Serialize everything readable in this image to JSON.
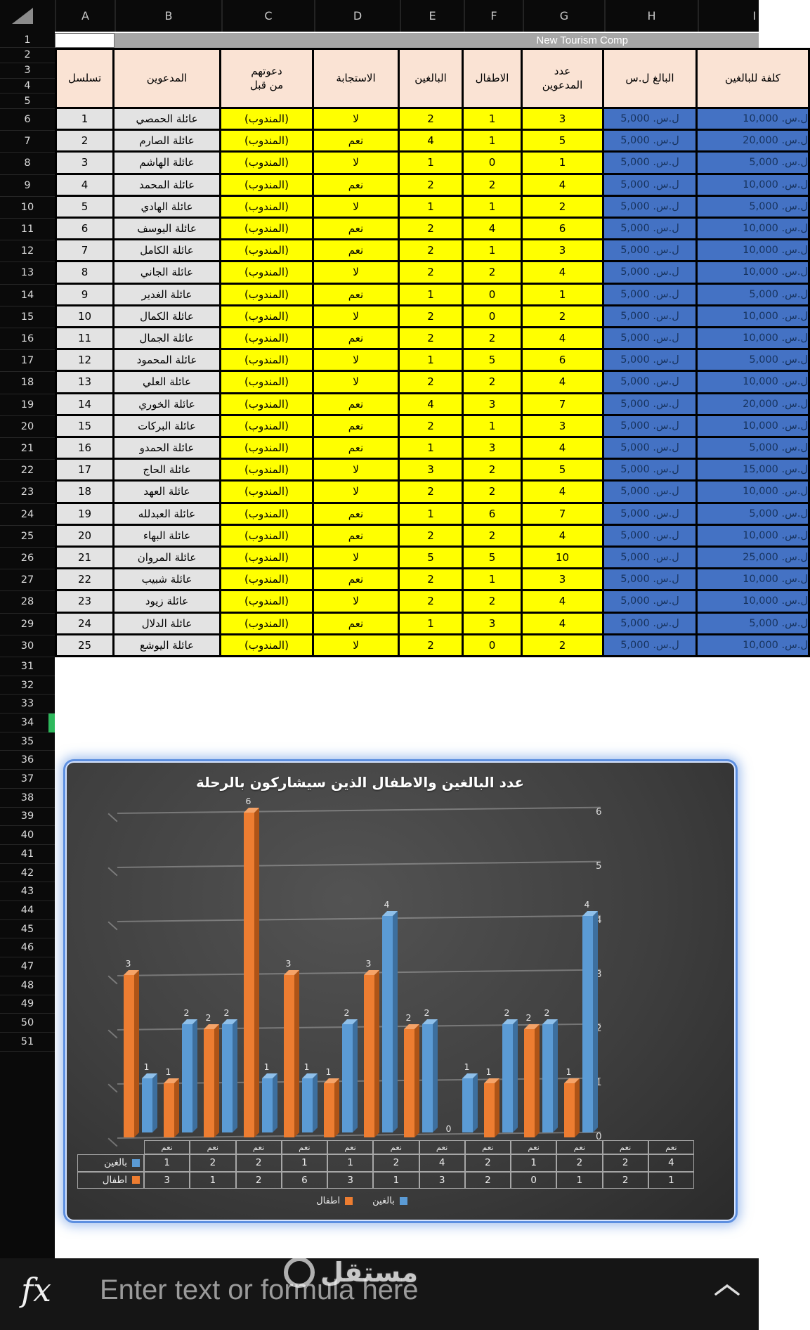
{
  "sheet": {
    "column_letters": [
      "A",
      "B",
      "C",
      "D",
      "E",
      "F",
      "G",
      "H",
      "I"
    ],
    "row_count": 51,
    "selected_row_indicator": 34,
    "title_banner": "New Tourism Comp"
  },
  "table": {
    "column_headers": [
      "تسلسل",
      "المدعوين",
      "دعوتهم\nمن قبل",
      "الاستجابة",
      "البالغين",
      "الاطفال",
      "عدد\nالمدعوين",
      "البالغ ل.س",
      "كلفة للبالغين"
    ],
    "rows": [
      [
        "1",
        "عائلة الحمصي",
        "(المندوب)",
        "لا",
        "2",
        "1",
        "3",
        "ل.س. 5,000",
        "ل.س. 10,000"
      ],
      [
        "2",
        "عائلة الصارم",
        "(المندوب)",
        "نعم",
        "4",
        "1",
        "5",
        "ل.س. 5,000",
        "ل.س. 20,000"
      ],
      [
        "3",
        "عائلة الهاشم",
        "(المندوب)",
        "لا",
        "1",
        "0",
        "1",
        "ل.س. 5,000",
        "ل.س. 5,000"
      ],
      [
        "4",
        "عائلة المحمد",
        "(المندوب)",
        "نعم",
        "2",
        "2",
        "4",
        "ل.س. 5,000",
        "ل.س. 10,000"
      ],
      [
        "5",
        "عائلة الهادي",
        "(المندوب)",
        "لا",
        "1",
        "1",
        "2",
        "ل.س. 5,000",
        "ل.س. 5,000"
      ],
      [
        "6",
        "عائلة اليوسف",
        "(المندوب)",
        "نعم",
        "2",
        "4",
        "6",
        "ل.س. 5,000",
        "ل.س. 10,000"
      ],
      [
        "7",
        "عائلة الكامل",
        "(المندوب)",
        "نعم",
        "2",
        "1",
        "3",
        "ل.س. 5,000",
        "ل.س. 10,000"
      ],
      [
        "8",
        "عائلة الجاني",
        "(المندوب)",
        "لا",
        "2",
        "2",
        "4",
        "ل.س. 5,000",
        "ل.س. 10,000"
      ],
      [
        "9",
        "عائلة الغدير",
        "(المندوب)",
        "نعم",
        "1",
        "0",
        "1",
        "ل.س. 5,000",
        "ل.س. 5,000"
      ],
      [
        "10",
        "عائلة الكمال",
        "(المندوب)",
        "لا",
        "2",
        "0",
        "2",
        "ل.س. 5,000",
        "ل.س. 10,000"
      ],
      [
        "11",
        "عائلة الجمال",
        "(المندوب)",
        "نعم",
        "2",
        "2",
        "4",
        "ل.س. 5,000",
        "ل.س. 10,000"
      ],
      [
        "12",
        "عائلة المحمود",
        "(المندوب)",
        "لا",
        "1",
        "5",
        "6",
        "ل.س. 5,000",
        "ل.س. 5,000"
      ],
      [
        "13",
        "عائلة العلي",
        "(المندوب)",
        "لا",
        "2",
        "2",
        "4",
        "ل.س. 5,000",
        "ل.س. 10,000"
      ],
      [
        "14",
        "عائلة الخوري",
        "(المندوب)",
        "نعم",
        "4",
        "3",
        "7",
        "ل.س. 5,000",
        "ل.س. 20,000"
      ],
      [
        "15",
        "عائلة البركات",
        "(المندوب)",
        "نعم",
        "2",
        "1",
        "3",
        "ل.س. 5,000",
        "ل.س. 10,000"
      ],
      [
        "16",
        "عائلة الحمدو",
        "(المندوب)",
        "نعم",
        "1",
        "3",
        "4",
        "ل.س. 5,000",
        "ل.س. 5,000"
      ],
      [
        "17",
        "عائلة الحاج",
        "(المندوب)",
        "لا",
        "3",
        "2",
        "5",
        "ل.س. 5,000",
        "ل.س. 15,000"
      ],
      [
        "18",
        "عائلة العهد",
        "(المندوب)",
        "لا",
        "2",
        "2",
        "4",
        "ل.س. 5,000",
        "ل.س. 10,000"
      ],
      [
        "19",
        "عائلة العبدلله",
        "(المندوب)",
        "نعم",
        "1",
        "6",
        "7",
        "ل.س. 5,000",
        "ل.س. 5,000"
      ],
      [
        "20",
        "عائلة البهاء",
        "(المندوب)",
        "نعم",
        "2",
        "2",
        "4",
        "ل.س. 5,000",
        "ل.س. 10,000"
      ],
      [
        "21",
        "عائلة المروان",
        "(المندوب)",
        "لا",
        "5",
        "5",
        "10",
        "ل.س. 5,000",
        "ل.س. 25,000"
      ],
      [
        "22",
        "عائلة شبيب",
        "(المندوب)",
        "نعم",
        "2",
        "1",
        "3",
        "ل.س. 5,000",
        "ل.س. 10,000"
      ],
      [
        "23",
        "عائلة زيود",
        "(المندوب)",
        "لا",
        "2",
        "2",
        "4",
        "ل.س. 5,000",
        "ل.س. 10,000"
      ],
      [
        "24",
        "عائلة الدلال",
        "(المندوب)",
        "نعم",
        "1",
        "3",
        "4",
        "ل.س. 5,000",
        "ل.س. 5,000"
      ],
      [
        "25",
        "عائلة اليوشع",
        "(المندوب)",
        "لا",
        "2",
        "0",
        "2",
        "ل.س. 5,000",
        "ل.س. 10,000"
      ]
    ]
  },
  "chart_data": {
    "type": "bar",
    "title": "عدد  البالغين والاطفال الذين سيشاركون بالرحلة",
    "categories": [
      "نعم",
      "نعم",
      "نعم",
      "نعم",
      "نعم",
      "نعم",
      "نعم",
      "نعم",
      "نعم",
      "نعم",
      "نعم",
      "نعم"
    ],
    "series": [
      {
        "name": "بالغين",
        "color": "#5B9BD5",
        "values": [
          1,
          2,
          2,
          1,
          1,
          2,
          4,
          2,
          1,
          2,
          2,
          4
        ]
      },
      {
        "name": "اطفال",
        "color": "#ED7D31",
        "values": [
          3,
          1,
          2,
          6,
          3,
          1,
          3,
          2,
          0,
          1,
          2,
          1
        ]
      }
    ],
    "ylim": [
      0,
      6
    ],
    "yticks": [
      0,
      1,
      2,
      3,
      4,
      5,
      6
    ],
    "axis_side": "right",
    "grid": true,
    "data_table": true,
    "legend_position": "bottom"
  },
  "formula_bar": {
    "fx": "fx",
    "placeholder": "Enter text or formula here"
  },
  "watermark": {
    "text": "مستقل"
  }
}
